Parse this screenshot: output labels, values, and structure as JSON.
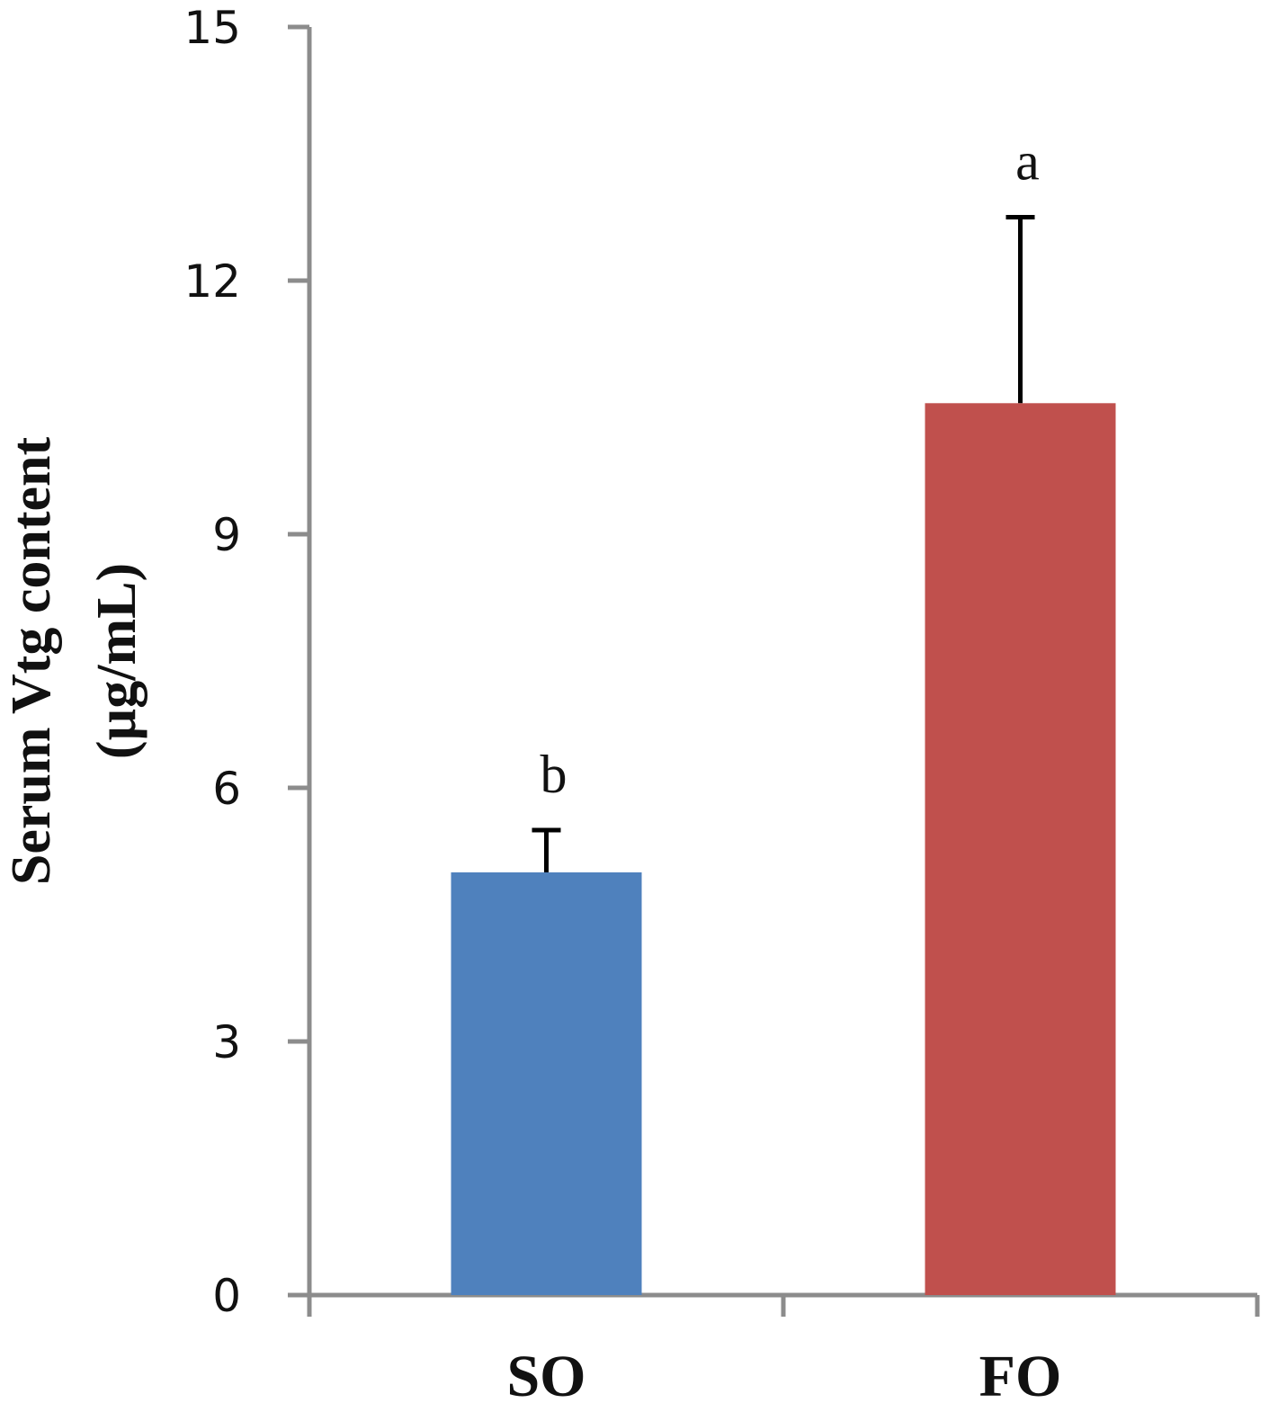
{
  "chart_data": {
    "type": "bar",
    "categories": [
      "SO",
      "FO"
    ],
    "values": [
      5.0,
      10.55
    ],
    "errors": [
      0.5,
      2.2
    ],
    "significance": [
      "b",
      "a"
    ],
    "colors": [
      "#4f81bd",
      "#c0504d"
    ],
    "ylabel_lines": [
      "Serum Vtg content",
      "(µg/mL)"
    ],
    "xlabel": "",
    "title": "",
    "ylim": [
      0,
      15
    ],
    "yticks": [
      0,
      3,
      6,
      9,
      12,
      15
    ],
    "ytick_labels": [
      "0",
      "3",
      "6",
      "9",
      "12",
      "15"
    ],
    "grid": false,
    "legend": "none"
  }
}
